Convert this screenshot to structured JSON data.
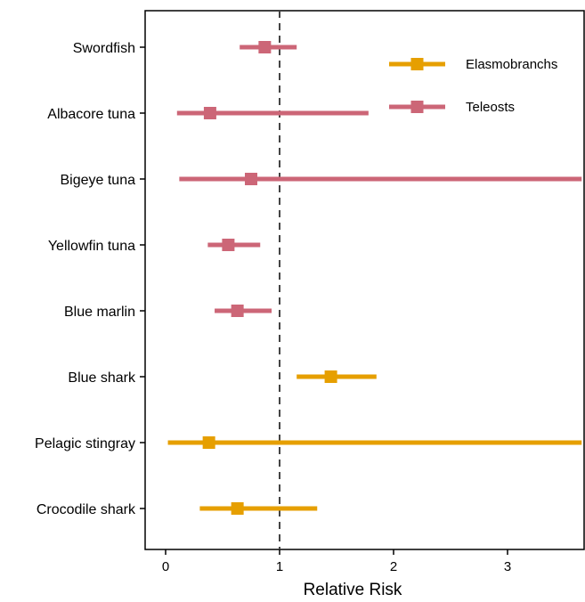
{
  "chart_data": {
    "type": "forest",
    "xlabel": "Relative Risk",
    "xlim": [
      -0.18,
      3.65
    ],
    "xticks": [
      0,
      1,
      2,
      3
    ],
    "reference_line": 1,
    "categories": [
      "Swordfish",
      "Albacore tuna",
      "Bigeye tuna",
      "Yellowfin tuna",
      "Blue marlin",
      "Blue shark",
      "Pelagic stingray",
      "Crocodile shark"
    ],
    "series": [
      {
        "name": "Elasmobranchs",
        "color": "#E69F00",
        "points": [
          {
            "category": "Blue shark",
            "estimate": 1.45,
            "lower": 1.15,
            "upper": 1.85
          },
          {
            "category": "Pelagic stingray",
            "estimate": 0.38,
            "lower": 0.02,
            "upper": 3.65
          },
          {
            "category": "Crocodile shark",
            "estimate": 0.63,
            "lower": 0.3,
            "upper": 1.33
          }
        ]
      },
      {
        "name": "Teleosts",
        "color": "#CC6677",
        "points": [
          {
            "category": "Swordfish",
            "estimate": 0.87,
            "lower": 0.65,
            "upper": 1.15
          },
          {
            "category": "Albacore tuna",
            "estimate": 0.39,
            "lower": 0.1,
            "upper": 1.78
          },
          {
            "category": "Bigeye tuna",
            "estimate": 0.75,
            "lower": 0.12,
            "upper": 3.65
          },
          {
            "category": "Yellowfin tuna",
            "estimate": 0.55,
            "lower": 0.37,
            "upper": 0.83
          },
          {
            "category": "Blue marlin",
            "estimate": 0.63,
            "lower": 0.43,
            "upper": 0.93
          }
        ]
      }
    ],
    "legend_position": "top-right",
    "grid": false
  }
}
